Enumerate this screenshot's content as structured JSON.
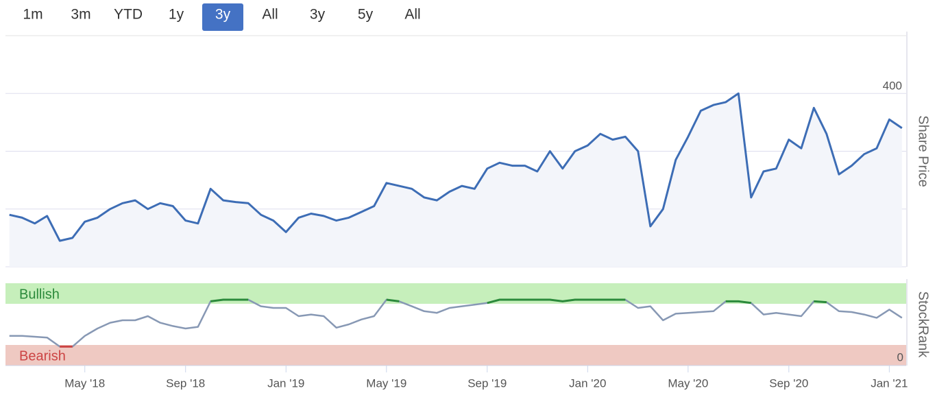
{
  "range_buttons": {
    "labels": [
      "1m",
      "3m",
      "YTD",
      "1y",
      "3y",
      "All",
      "3y",
      "5y",
      "All"
    ],
    "active": 4
  },
  "chart_data": [
    {
      "type": "line",
      "y_label": "Share Price",
      "color": "#3d6db5",
      "fill": "#f3f5fa",
      "grid": true,
      "xlim": [
        2018.07,
        2021.056
      ],
      "ylim": [
        100,
        500
      ],
      "yticks": [
        100,
        200,
        300,
        400
      ],
      "x": [
        2018.083,
        2018.125,
        2018.167,
        2018.208,
        2018.25,
        2018.292,
        2018.333,
        2018.375,
        2018.417,
        2018.458,
        2018.5,
        2018.542,
        2018.583,
        2018.625,
        2018.667,
        2018.708,
        2018.75,
        2018.792,
        2018.833,
        2018.875,
        2018.917,
        2018.958,
        2019.0,
        2019.042,
        2019.083,
        2019.125,
        2019.167,
        2019.208,
        2019.25,
        2019.292,
        2019.333,
        2019.375,
        2019.417,
        2019.458,
        2019.5,
        2019.542,
        2019.583,
        2019.625,
        2019.667,
        2019.708,
        2019.75,
        2019.792,
        2019.833,
        2019.875,
        2019.917,
        2019.958,
        2020.0,
        2020.042,
        2020.083,
        2020.125,
        2020.167,
        2020.208,
        2020.25,
        2020.292,
        2020.333,
        2020.375,
        2020.417,
        2020.458,
        2020.5,
        2020.542,
        2020.583,
        2020.625,
        2020.667,
        2020.708,
        2020.75,
        2020.792,
        2020.833,
        2020.875,
        2020.917,
        2020.958,
        2021.0,
        2021.042
      ],
      "values": [
        190,
        185,
        175,
        188,
        145,
        150,
        178,
        185,
        200,
        210,
        215,
        200,
        210,
        205,
        180,
        175,
        235,
        215,
        212,
        210,
        190,
        180,
        160,
        185,
        192,
        188,
        180,
        185,
        195,
        205,
        245,
        240,
        235,
        220,
        215,
        230,
        240,
        235,
        270,
        280,
        275,
        275,
        265,
        300,
        270,
        300,
        310,
        330,
        320,
        325,
        300,
        170,
        200,
        285,
        325,
        370,
        380,
        385,
        400,
        220,
        265,
        270,
        320,
        305,
        375,
        330,
        260,
        275,
        295,
        305,
        355,
        340
      ]
    },
    {
      "type": "banded-line",
      "y_label": "StockRank",
      "color": "#8798b4",
      "xlim": [
        2018.07,
        2021.056
      ],
      "ylim": [
        0,
        100
      ],
      "yticks": [
        0
      ],
      "bands": [
        {
          "label": "Bullish",
          "range": [
            75,
            100
          ],
          "color": "#c6efbb",
          "line_color": "#2b8a3b",
          "text_color": "#2b8a3b"
        },
        {
          "label": "Bearish",
          "range": [
            0,
            25
          ],
          "color": "#efc9c2",
          "line_color": "#cc4444",
          "text_color": "#cc4444"
        }
      ],
      "xticks": [
        {
          "value": 2018.333,
          "label": "May '18"
        },
        {
          "value": 2018.667,
          "label": "Sep '18"
        },
        {
          "value": 2019.0,
          "label": "Jan '19"
        },
        {
          "value": 2019.333,
          "label": "May '19"
        },
        {
          "value": 2019.667,
          "label": "Sep '19"
        },
        {
          "value": 2020.0,
          "label": "Jan '20"
        },
        {
          "value": 2020.333,
          "label": "May '20"
        },
        {
          "value": 2020.667,
          "label": "Sep '20"
        },
        {
          "value": 2021.0,
          "label": "Jan '21"
        }
      ],
      "x": [
        2018.083,
        2018.125,
        2018.167,
        2018.208,
        2018.25,
        2018.292,
        2018.333,
        2018.375,
        2018.417,
        2018.458,
        2018.5,
        2018.542,
        2018.583,
        2018.625,
        2018.667,
        2018.708,
        2018.75,
        2018.792,
        2018.833,
        2018.875,
        2018.917,
        2018.958,
        2019.0,
        2019.042,
        2019.083,
        2019.125,
        2019.167,
        2019.208,
        2019.25,
        2019.292,
        2019.333,
        2019.375,
        2019.417,
        2019.458,
        2019.5,
        2019.542,
        2019.583,
        2019.625,
        2019.667,
        2019.708,
        2019.75,
        2019.792,
        2019.833,
        2019.875,
        2019.917,
        2019.958,
        2020.0,
        2020.042,
        2020.083,
        2020.125,
        2020.167,
        2020.208,
        2020.25,
        2020.292,
        2020.333,
        2020.375,
        2020.417,
        2020.458,
        2020.5,
        2020.542,
        2020.583,
        2020.625,
        2020.667,
        2020.708,
        2020.75,
        2020.792,
        2020.833,
        2020.875,
        2020.917,
        2020.958,
        2021.0,
        2021.042
      ],
      "values": [
        36,
        36,
        35,
        34,
        23,
        23,
        36,
        45,
        52,
        55,
        55,
        60,
        52,
        48,
        45,
        47,
        78,
        80,
        80,
        80,
        72,
        70,
        70,
        60,
        62,
        60,
        46,
        50,
        56,
        60,
        80,
        78,
        72,
        66,
        64,
        70,
        72,
        74,
        76,
        80,
        80,
        80,
        80,
        80,
        78,
        80,
        80,
        80,
        80,
        80,
        70,
        72,
        55,
        63,
        64,
        65,
        66,
        78,
        78,
        76,
        62,
        64,
        62,
        60,
        78,
        77,
        66,
        65,
        62,
        58,
        68,
        58
      ]
    }
  ]
}
